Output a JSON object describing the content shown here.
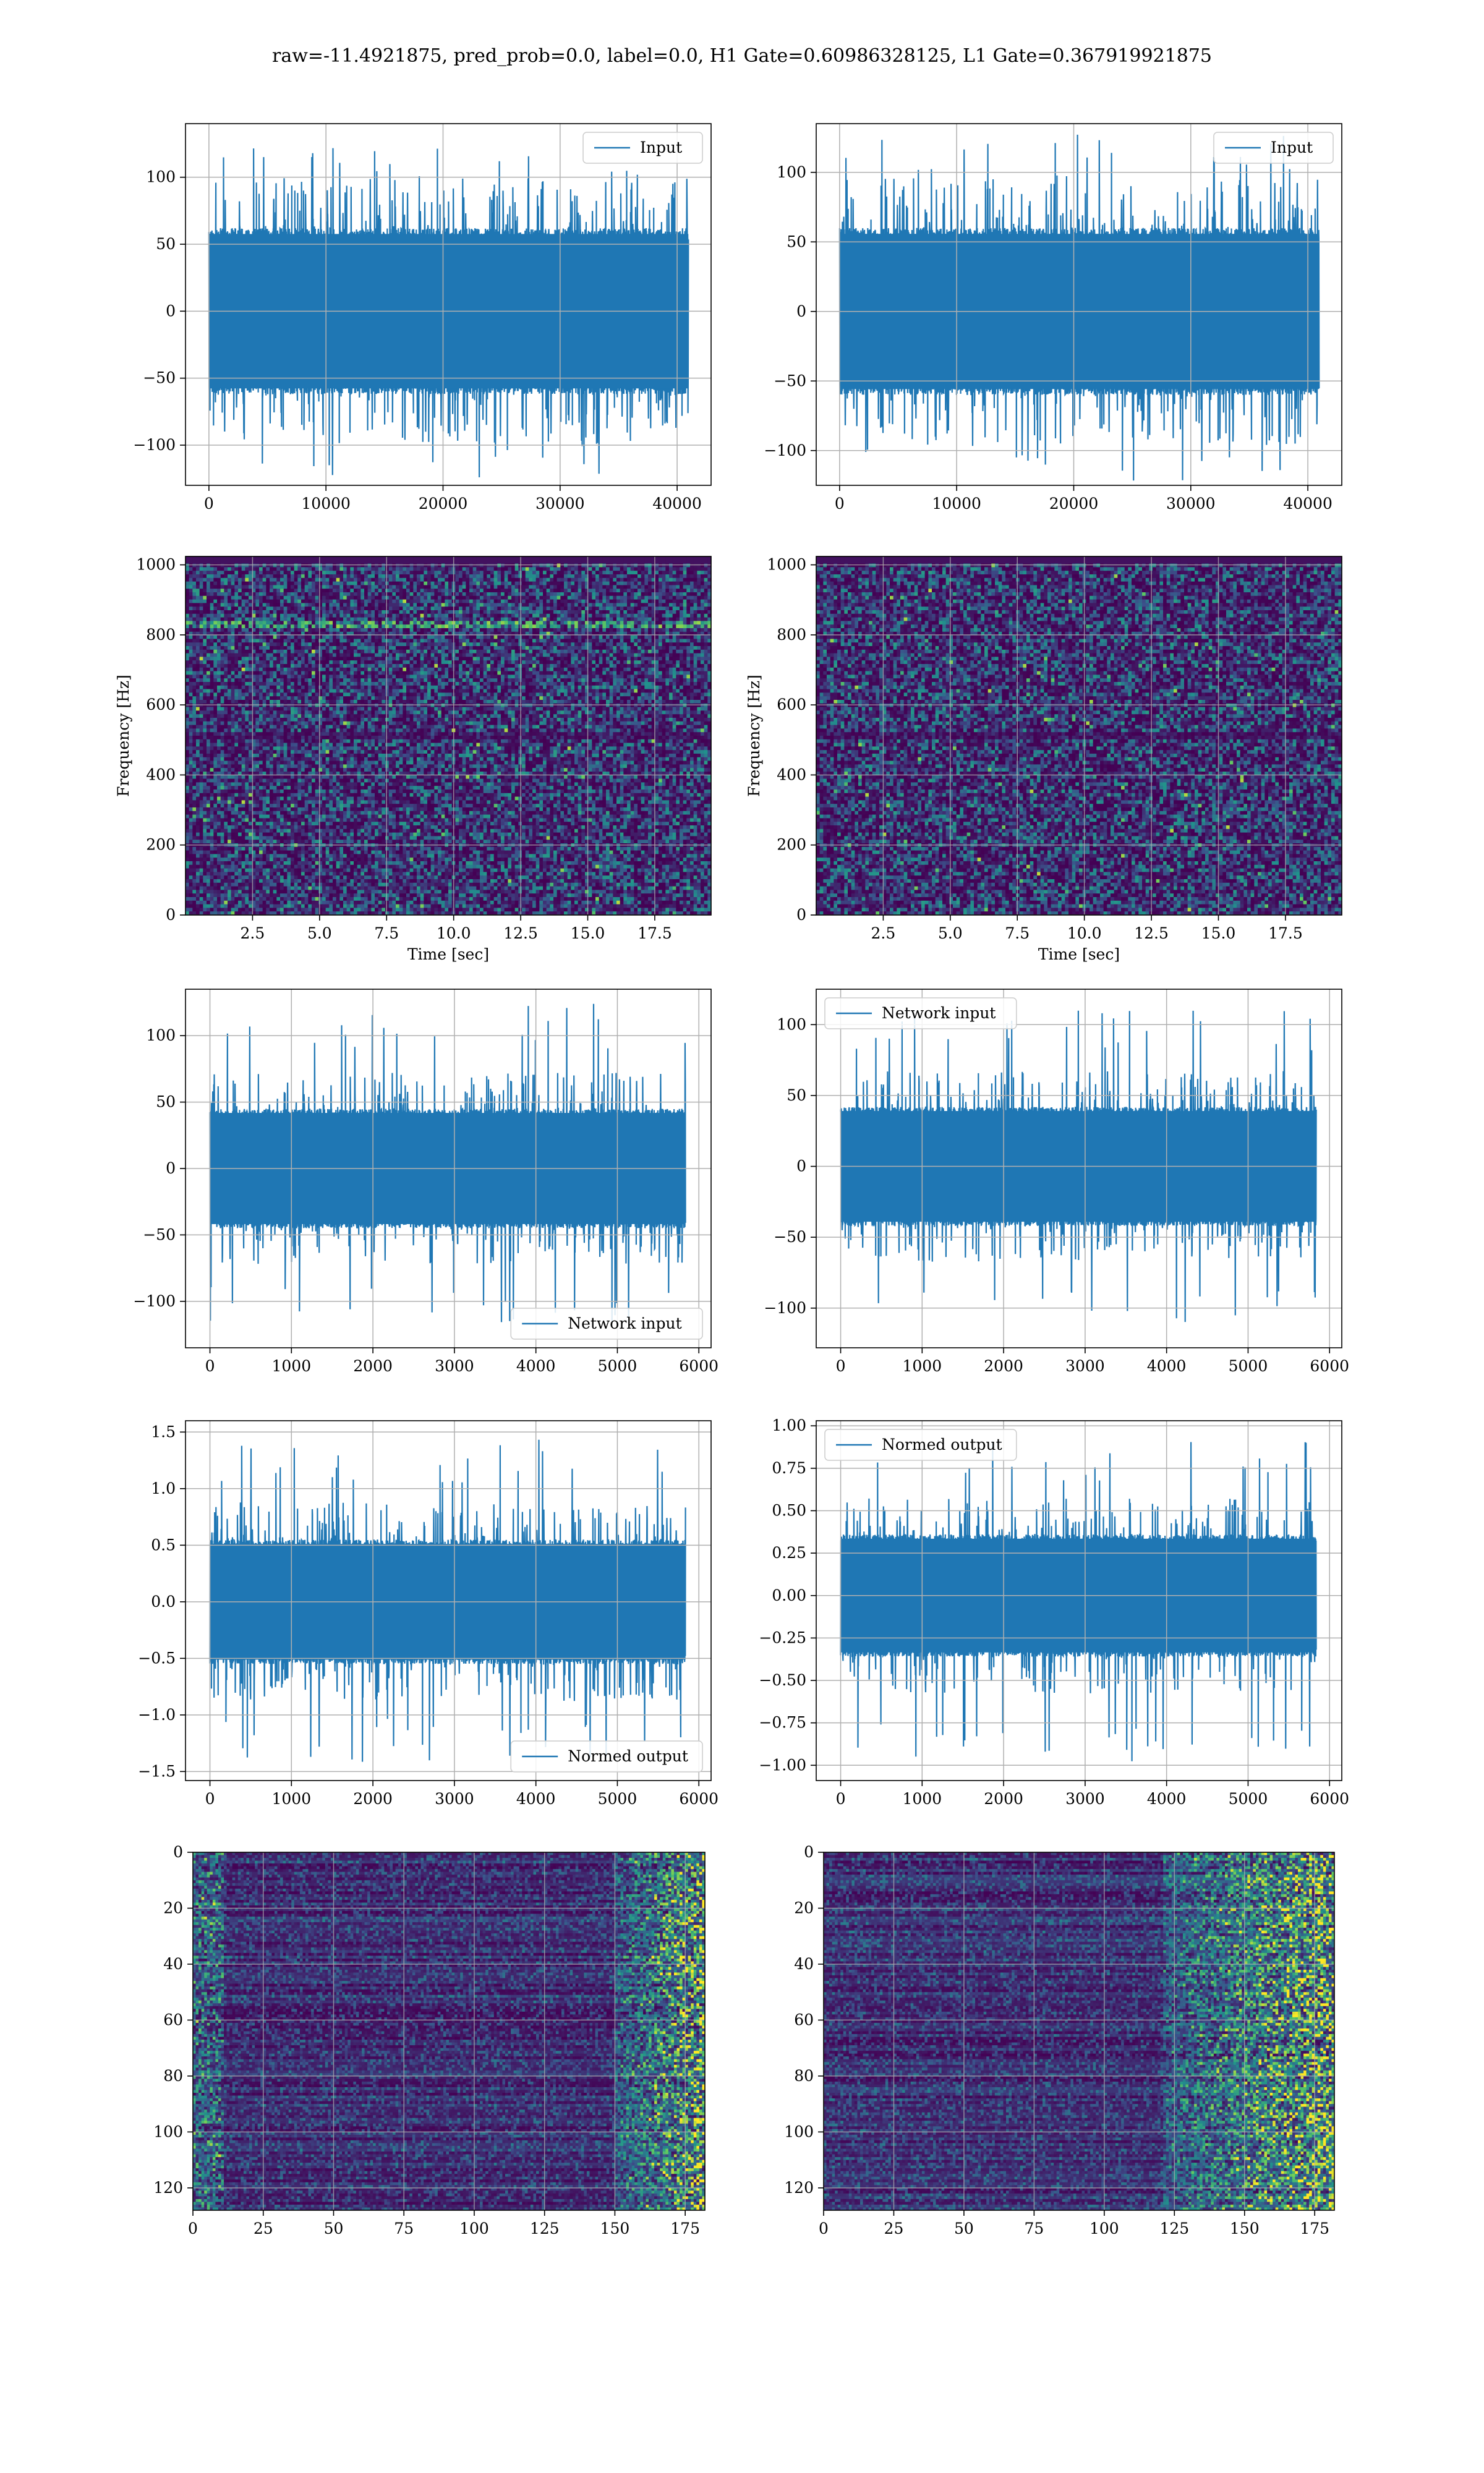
{
  "figure": {
    "title": "raw=-11.4921875, pred_prob=0.0, label=0.0, H1 Gate=0.60986328125, L1 Gate=0.367919921875",
    "colors": {
      "line": "#1f77b4",
      "grid": "#b0b0b0",
      "viridis": [
        "#440154",
        "#3b528b",
        "#21918c",
        "#5ec962",
        "#fde725"
      ]
    }
  },
  "chart_data": [
    {
      "type": "line",
      "title": "",
      "legend": "Input",
      "legend_loc": "upper right",
      "xlim": [
        -2000,
        42900
      ],
      "ylim": [
        -130,
        140
      ],
      "xticks": [
        0,
        10000,
        20000,
        30000,
        40000
      ],
      "yticks": [
        -100,
        -50,
        0,
        50,
        100
      ],
      "n_samples": 40960,
      "envelope": {
        "core_abs": 62,
        "peak_max": 122,
        "peak_min": -125
      }
    },
    {
      "type": "line",
      "title": "",
      "legend": "Input",
      "legend_loc": "upper right",
      "xlim": [
        -2000,
        42900
      ],
      "ylim": [
        -125,
        135
      ],
      "xticks": [
        0,
        10000,
        20000,
        30000,
        40000
      ],
      "yticks": [
        -100,
        -50,
        0,
        50,
        100
      ],
      "n_samples": 40960,
      "envelope": {
        "core_abs": 60,
        "peak_max": 128,
        "peak_min": -122
      }
    },
    {
      "type": "heatmap",
      "title": "",
      "xlabel": "Time [sec]",
      "ylabel": "Frequency [Hz]",
      "xlim": [
        0,
        19.6
      ],
      "ylim": [
        0,
        1024
      ],
      "xticks": [
        "2.5",
        "5.0",
        "7.5",
        "10.0",
        "12.5",
        "15.0",
        "17.5"
      ],
      "xtick_values": [
        2.5,
        5.0,
        7.5,
        10.0,
        12.5,
        15.0,
        17.5
      ],
      "yticks": [
        "0",
        "200",
        "400",
        "600",
        "800",
        "1000"
      ],
      "ytick_values": [
        0,
        200,
        400,
        600,
        800,
        1000
      ],
      "colormap": "viridis",
      "features": "noise spectrogram with a faint line near 830 Hz and a dark band near 510 Hz"
    },
    {
      "type": "heatmap",
      "title": "",
      "xlabel": "Time [sec]",
      "ylabel": "Frequency [Hz]",
      "xlim": [
        0,
        19.6
      ],
      "ylim": [
        0,
        1024
      ],
      "xticks": [
        "2.5",
        "5.0",
        "7.5",
        "10.0",
        "12.5",
        "15.0",
        "17.5"
      ],
      "xtick_values": [
        2.5,
        5.0,
        7.5,
        10.0,
        12.5,
        15.0,
        17.5
      ],
      "yticks": [
        "0",
        "200",
        "400",
        "600",
        "800",
        "1000"
      ],
      "ytick_values": [
        0,
        200,
        400,
        600,
        800,
        1000
      ],
      "colormap": "viridis",
      "features": "noise spectrogram with a dark band near 510 Hz"
    },
    {
      "type": "line",
      "title": "",
      "legend": "Network input",
      "legend_loc": "lower right",
      "xlim": [
        -300,
        6150
      ],
      "ylim": [
        -135,
        135
      ],
      "xticks": [
        0,
        1000,
        2000,
        3000,
        4000,
        5000,
        6000
      ],
      "yticks": [
        -100,
        -50,
        0,
        50,
        100
      ],
      "n_samples": 5836,
      "envelope": {
        "core_abs": 45,
        "peak_max": 124,
        "peak_min": -120
      }
    },
    {
      "type": "line",
      "title": "",
      "legend": "Network input",
      "legend_loc": "upper left",
      "xlim": [
        -300,
        6150
      ],
      "ylim": [
        -128,
        125
      ],
      "xticks": [
        0,
        1000,
        2000,
        3000,
        4000,
        5000,
        6000
      ],
      "yticks": [
        -100,
        -50,
        0,
        50,
        100
      ],
      "n_samples": 5836,
      "envelope": {
        "core_abs": 42,
        "peak_max": 112,
        "peak_min": -118
      }
    },
    {
      "type": "line",
      "title": "",
      "legend": "Normed output",
      "legend_loc": "lower right",
      "xlim": [
        -300,
        6150
      ],
      "ylim": [
        -1.58,
        1.6
      ],
      "xticks": [
        0,
        1000,
        2000,
        3000,
        4000,
        5000,
        6000
      ],
      "yticks": [
        "−1.5",
        "−1.0",
        "−0.5",
        "0.0",
        "0.5",
        "1.0",
        "1.5"
      ],
      "ytick_values": [
        -1.5,
        -1.0,
        -0.5,
        0.0,
        0.5,
        1.0,
        1.5
      ],
      "n_samples": 5836,
      "envelope": {
        "core_abs": 0.55,
        "peak_max": 1.45,
        "peak_min": -1.42
      }
    },
    {
      "type": "line",
      "title": "",
      "legend": "Normed output",
      "legend_loc": "upper left",
      "xlim": [
        -300,
        6150
      ],
      "ylim": [
        -1.09,
        1.03
      ],
      "xticks": [
        0,
        1000,
        2000,
        3000,
        4000,
        5000,
        6000
      ],
      "yticks": [
        "−1.00",
        "−0.75",
        "−0.50",
        "−0.25",
        "0.00",
        "0.25",
        "0.50",
        "0.75",
        "1.00"
      ],
      "ytick_values": [
        -1.0,
        -0.75,
        -0.5,
        -0.25,
        0.0,
        0.25,
        0.5,
        0.75,
        1.0
      ],
      "n_samples": 5836,
      "envelope": {
        "core_abs": 0.36,
        "peak_max": 0.93,
        "peak_min": -0.98
      }
    },
    {
      "type": "heatmap",
      "title": "",
      "xlim": [
        0,
        182
      ],
      "ylim": [
        128,
        0
      ],
      "xticks": [
        0,
        25,
        50,
        75,
        100,
        125,
        150,
        175
      ],
      "yticks": [
        0,
        20,
        40,
        60,
        80,
        100,
        120
      ],
      "rows": 128,
      "cols": 182,
      "colormap": "viridis",
      "features": "horizontal row stripes, brighter activations in the last ~25 columns and a few on the left edge"
    },
    {
      "type": "heatmap",
      "title": "",
      "xlim": [
        0,
        182
      ],
      "ylim": [
        128,
        0
      ],
      "xticks": [
        0,
        25,
        50,
        75,
        100,
        125,
        150,
        175
      ],
      "yticks": [
        0,
        20,
        40,
        60,
        80,
        100,
        120
      ],
      "rows": 128,
      "cols": 182,
      "colormap": "viridis",
      "features": "horizontal row stripes, bright activations from column ~120 to the right edge"
    }
  ]
}
